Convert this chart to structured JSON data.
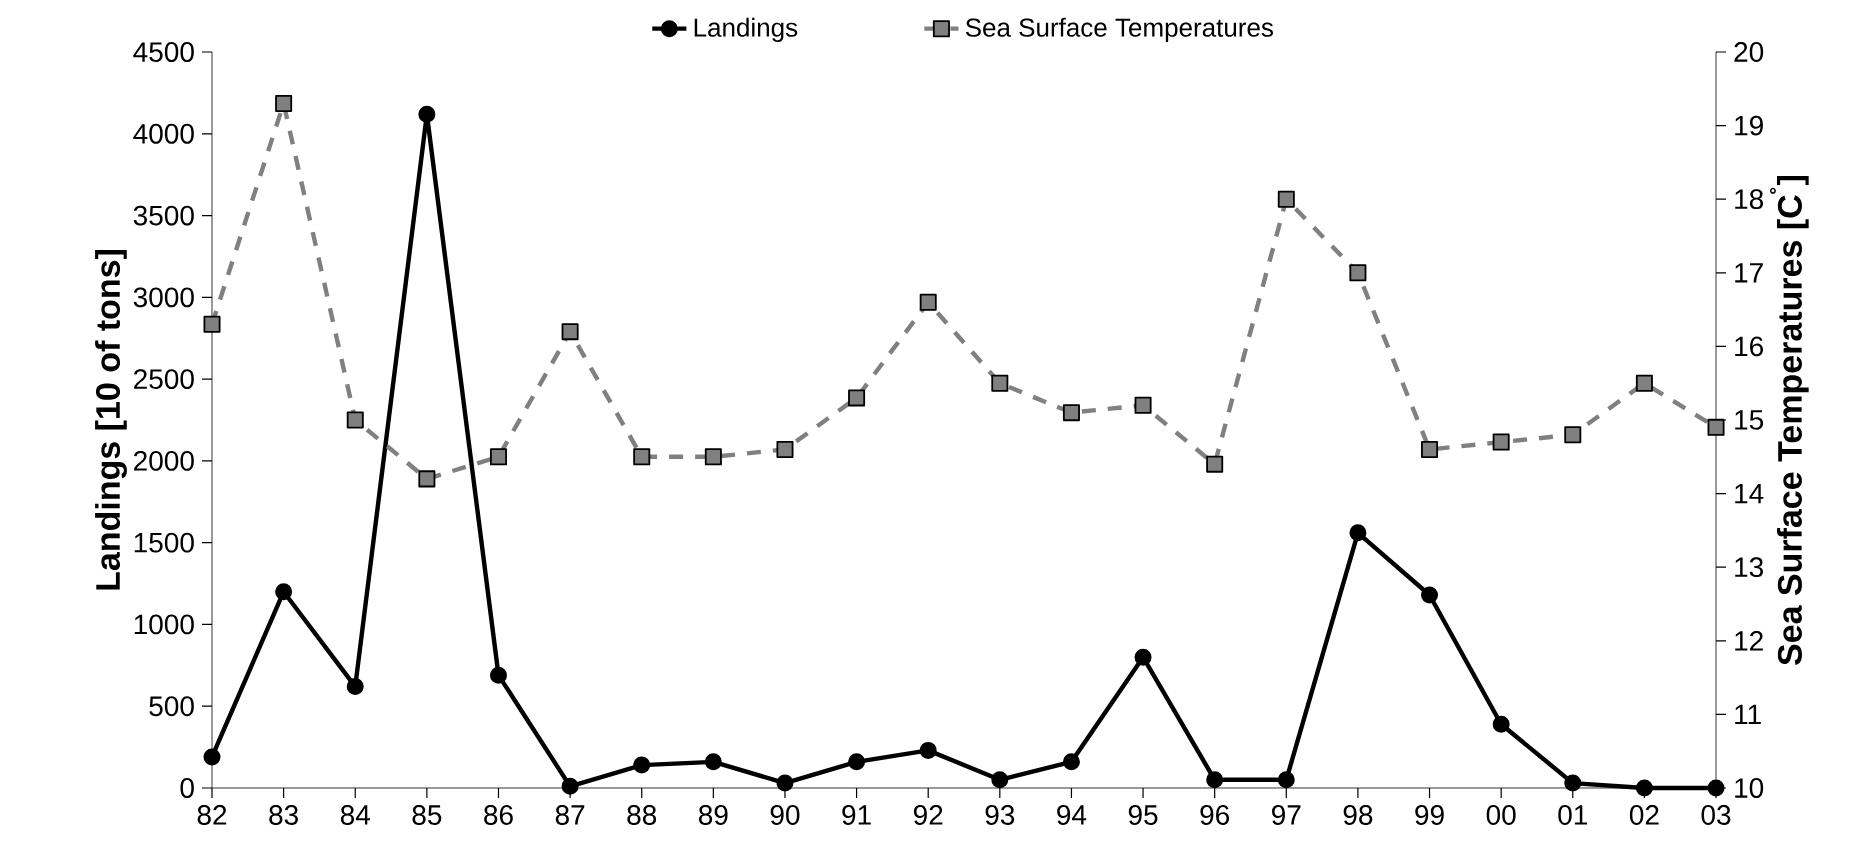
{
  "chart_data": {
    "type": "line",
    "xlabel": null,
    "ylabel": "Landings [10 of tons]",
    "y2label": "Sea Surface Temperatures [C$^{˚}$]",
    "categories": [
      "82",
      "83",
      "84",
      "85",
      "86",
      "87",
      "88",
      "89",
      "90",
      "91",
      "92",
      "93",
      "94",
      "95",
      "96",
      "97",
      "98",
      "99",
      "00",
      "01",
      "02",
      "03"
    ],
    "series": [
      {
        "name": "Landings",
        "color": "#000000",
        "axis": "y",
        "marker": "circle",
        "line_style": "solid",
        "values": [
          190,
          1200,
          620,
          4120,
          690,
          10,
          140,
          160,
          30,
          160,
          230,
          50,
          160,
          800,
          50,
          50,
          1560,
          1180,
          390,
          30,
          0,
          0
        ]
      },
      {
        "name": "Sea Surface Temperatures",
        "color": "#808080",
        "axis": "y2",
        "marker": "square",
        "line_style": "dashed",
        "values": [
          16.3,
          19.3,
          15.0,
          14.2,
          14.5,
          16.2,
          14.5,
          14.5,
          14.6,
          15.3,
          16.6,
          15.5,
          15.1,
          15.2,
          14.4,
          18.0,
          17.0,
          14.6,
          14.7,
          14.8,
          15.5,
          14.9
        ]
      }
    ],
    "ylim": [
      0,
      4500
    ],
    "yticks": [
      0,
      500,
      1000,
      1500,
      2000,
      2500,
      3000,
      3500,
      4000,
      4500
    ],
    "y2lim": [
      10,
      20
    ],
    "y2ticks": [
      10,
      11,
      12,
      13,
      14,
      15,
      16,
      17,
      18,
      19,
      20
    ],
    "grid": false,
    "legend": "top"
  }
}
